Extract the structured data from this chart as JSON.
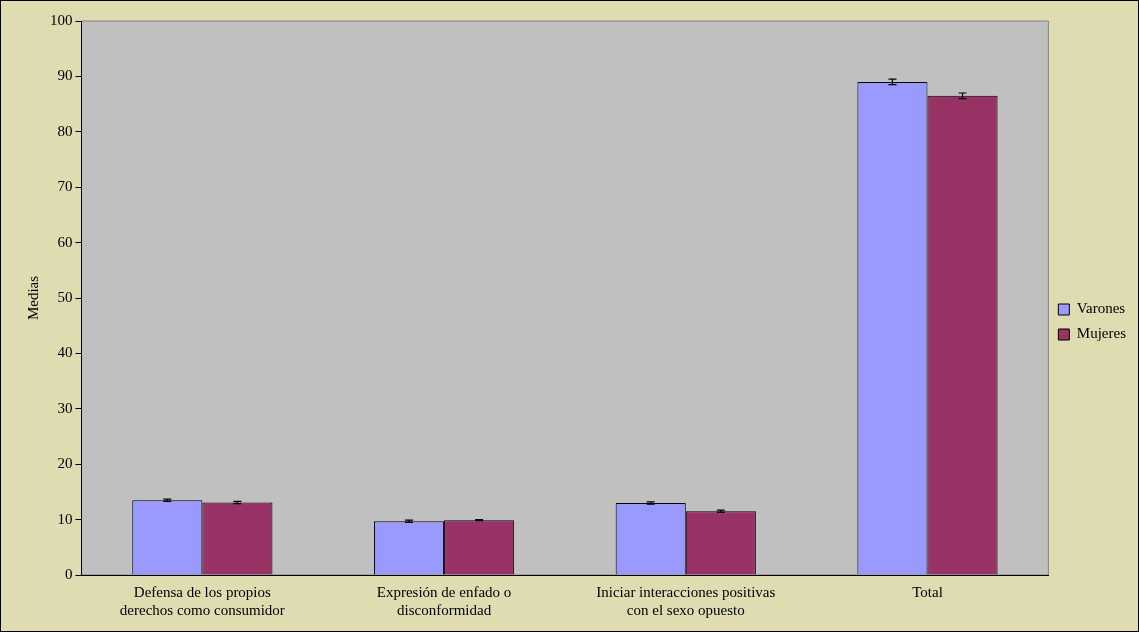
{
  "chart_data": {
    "type": "bar",
    "ylabel": "Medias",
    "categories": [
      "Defensa de los propios\nderechos como consumidor",
      "Expresión de enfado o\ndisconformidad",
      "Iniciar interacciones positivas\ncon el sexo opuesto",
      "Total"
    ],
    "series": [
      {
        "name": "Varones",
        "color": "#9999ff",
        "values": [
          13.5,
          9.7,
          13.0,
          89.0
        ],
        "errors": [
          0.2,
          0.2,
          0.2,
          0.5
        ]
      },
      {
        "name": "Mujeres",
        "color": "#993366",
        "values": [
          13.1,
          9.9,
          11.5,
          86.5
        ],
        "errors": [
          0.2,
          0.1,
          0.2,
          0.5
        ]
      }
    ],
    "ylim": [
      0,
      100
    ],
    "yticks": [
      0,
      10,
      20,
      30,
      40,
      50,
      60,
      70,
      80,
      90,
      100
    ],
    "grid": false,
    "legend": "right"
  }
}
